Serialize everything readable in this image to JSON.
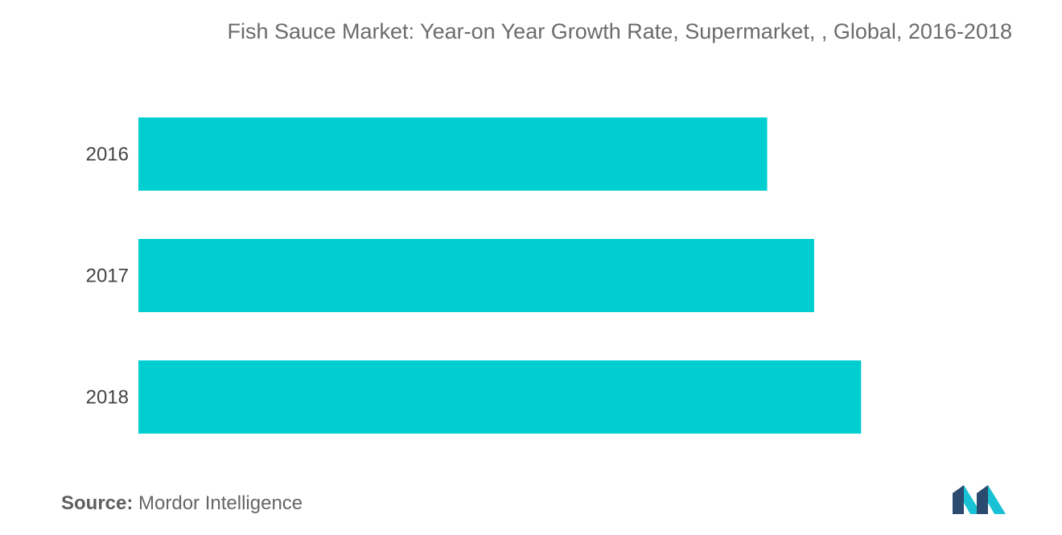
{
  "chart_data": {
    "type": "bar",
    "orientation": "horizontal",
    "title": "Fish Sauce Market: Year-on Year Growth Rate, Supermarket, , Global, 2016-2018",
    "categories": [
      "2016",
      "2017",
      "2018"
    ],
    "values": [
      8.7,
      9.35,
      10.0
    ],
    "xlim": [
      0,
      12
    ],
    "xlabel": "",
    "ylabel": "",
    "grid": false,
    "legend": "none",
    "value_axis_visible": false,
    "bar_color": "#00CED1"
  },
  "source": {
    "label": "Source:",
    "text": "Mordor Intelligence"
  },
  "logo": {
    "icon": "mordor-intelligence-logo",
    "colors": [
      "#2B4A6F",
      "#18C1D3"
    ]
  }
}
